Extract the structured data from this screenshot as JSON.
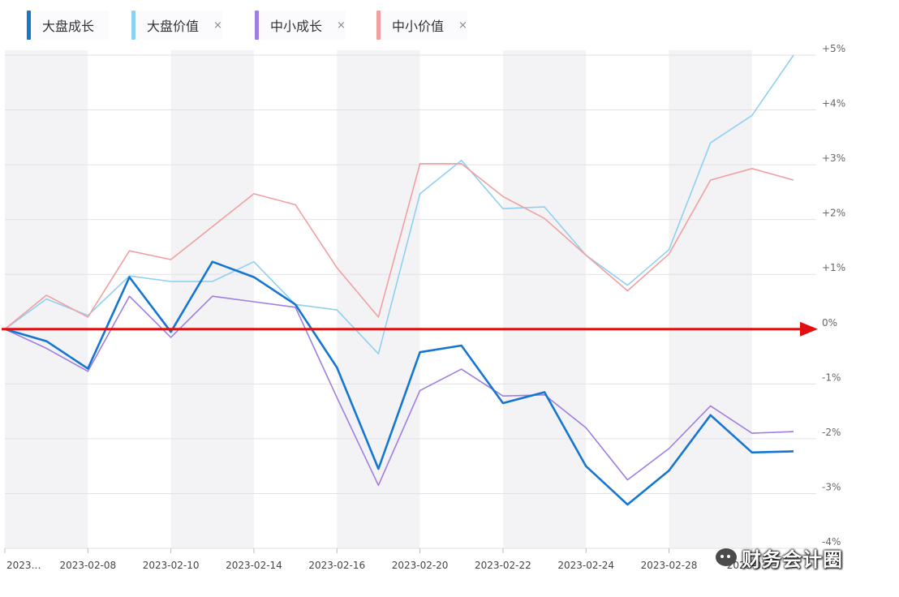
{
  "chart_data": {
    "type": "line",
    "x": [
      "2023-02-06",
      "2023-02-07",
      "2023-02-08",
      "2023-02-09",
      "2023-02-10",
      "2023-02-13",
      "2023-02-14",
      "2023-02-15",
      "2023-02-16",
      "2023-02-17",
      "2023-02-20",
      "2023-02-21",
      "2023-02-22",
      "2023-02-23",
      "2023-02-24",
      "2023-02-27",
      "2023-02-28",
      "2023-03-01",
      "2023-03-02",
      "2023-03-03"
    ],
    "x_tick_labels": [
      {
        "label": "2023…",
        "index": 0
      },
      {
        "label": "2023-02-08",
        "index": 2
      },
      {
        "label": "2023-02-10",
        "index": 4
      },
      {
        "label": "2023-02-14",
        "index": 6
      },
      {
        "label": "2023-02-16",
        "index": 8
      },
      {
        "label": "2023-02-20",
        "index": 10
      },
      {
        "label": "2023-02-22",
        "index": 12
      },
      {
        "label": "2023-02-24",
        "index": 14
      },
      {
        "label": "2023-02-28",
        "index": 16
      },
      {
        "label": "2023-03…",
        "index": 18
      }
    ],
    "y_tick_labels": [
      "+5%",
      "+4%",
      "+3%",
      "+2%",
      "+1%",
      "0%",
      "-1%",
      "-2%",
      "-3%",
      "-4%"
    ],
    "y_tick_values": [
      5,
      4,
      3,
      2,
      1,
      0,
      -1,
      -2,
      -3,
      -4
    ],
    "ylim": [
      -4,
      5
    ],
    "grid": true,
    "legend_position": "top-left",
    "series": [
      {
        "name": "大盘成长",
        "color": "#1576d2",
        "width": 2.6,
        "values": [
          0.0,
          -0.22,
          -0.72,
          0.95,
          -0.05,
          1.23,
          0.95,
          0.45,
          -0.7,
          -2.55,
          -0.42,
          -0.3,
          -1.35,
          -1.15,
          -2.5,
          -3.2,
          -2.58,
          -1.57,
          -2.25,
          -2.23
        ]
      },
      {
        "name": "大盘价值",
        "color": "#8fd0f0",
        "width": 1.6,
        "values": [
          0.0,
          0.55,
          0.25,
          0.97,
          0.87,
          0.87,
          1.23,
          0.45,
          0.35,
          -0.45,
          2.47,
          3.08,
          2.2,
          2.23,
          1.35,
          0.8,
          1.45,
          3.4,
          3.9,
          5.0
        ]
      },
      {
        "name": "中小成长",
        "color": "#a07ee0",
        "width": 1.6,
        "values": [
          0.0,
          -0.35,
          -0.77,
          0.6,
          -0.15,
          0.6,
          0.5,
          0.4,
          -1.25,
          -2.85,
          -1.12,
          -0.73,
          -1.22,
          -1.2,
          -1.8,
          -2.75,
          -2.18,
          -1.4,
          -1.9,
          -1.87
        ]
      },
      {
        "name": "中小价值",
        "color": "#f0a0a0",
        "width": 1.6,
        "values": [
          0.0,
          0.62,
          0.22,
          1.43,
          1.27,
          1.87,
          2.47,
          2.27,
          1.12,
          0.22,
          3.02,
          3.02,
          2.42,
          2.02,
          1.35,
          0.7,
          1.37,
          2.72,
          2.93,
          2.72
        ]
      }
    ],
    "zero_arrow": {
      "color": "#e01010"
    }
  },
  "legend": {
    "items": [
      {
        "label": "大盘成长",
        "color": "#1576d2",
        "close": ""
      },
      {
        "label": "大盘价值",
        "color": "#8fd0f0",
        "close": "×"
      },
      {
        "label": "中小成长",
        "color": "#a07ee0",
        "close": "×"
      },
      {
        "label": "中小价值",
        "color": "#f0a0a0",
        "close": "×"
      }
    ]
  },
  "watermark": {
    "icon": "wechat-icon",
    "text": "财务会计圈"
  }
}
